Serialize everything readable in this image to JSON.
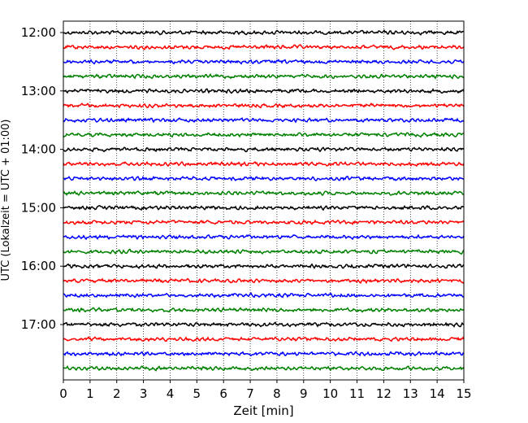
{
  "chart_data": {
    "type": "line",
    "title": "",
    "xlabel": "Zeit  [min]",
    "ylabel": "UTC (Lokalzeit = UTC + 01:00)",
    "xlim": [
      0,
      15
    ],
    "x_ticks": [
      "0",
      "1",
      "2",
      "3",
      "4",
      "5",
      "6",
      "7",
      "8",
      "9",
      "10",
      "11",
      "12",
      "13",
      "14",
      "15"
    ],
    "y_ticks": [
      "12:00",
      "13:00",
      "14:00",
      "15:00",
      "16:00",
      "17:00"
    ],
    "grid_x": "dotted",
    "trace_interval_minutes": 15,
    "trace_colors": [
      "#000000",
      "#ff0000",
      "#0000ff",
      "#008000"
    ],
    "traces": [
      {
        "start": "12:00",
        "color": "#000000"
      },
      {
        "start": "12:15",
        "color": "#ff0000"
      },
      {
        "start": "12:30",
        "color": "#0000ff"
      },
      {
        "start": "12:45",
        "color": "#008000"
      },
      {
        "start": "13:00",
        "color": "#000000"
      },
      {
        "start": "13:15",
        "color": "#ff0000"
      },
      {
        "start": "13:30",
        "color": "#0000ff"
      },
      {
        "start": "13:45",
        "color": "#008000"
      },
      {
        "start": "14:00",
        "color": "#000000"
      },
      {
        "start": "14:15",
        "color": "#ff0000"
      },
      {
        "start": "14:30",
        "color": "#0000ff"
      },
      {
        "start": "14:45",
        "color": "#008000"
      },
      {
        "start": "15:00",
        "color": "#000000"
      },
      {
        "start": "15:15",
        "color": "#ff0000"
      },
      {
        "start": "15:30",
        "color": "#0000ff"
      },
      {
        "start": "15:45",
        "color": "#008000"
      },
      {
        "start": "16:00",
        "color": "#000000"
      },
      {
        "start": "16:15",
        "color": "#ff0000"
      },
      {
        "start": "16:30",
        "color": "#0000ff"
      },
      {
        "start": "16:45",
        "color": "#008000"
      },
      {
        "start": "17:00",
        "color": "#000000"
      },
      {
        "start": "17:15",
        "color": "#ff0000"
      },
      {
        "start": "17:30",
        "color": "#0000ff"
      },
      {
        "start": "17:45",
        "color": "#008000"
      }
    ]
  }
}
